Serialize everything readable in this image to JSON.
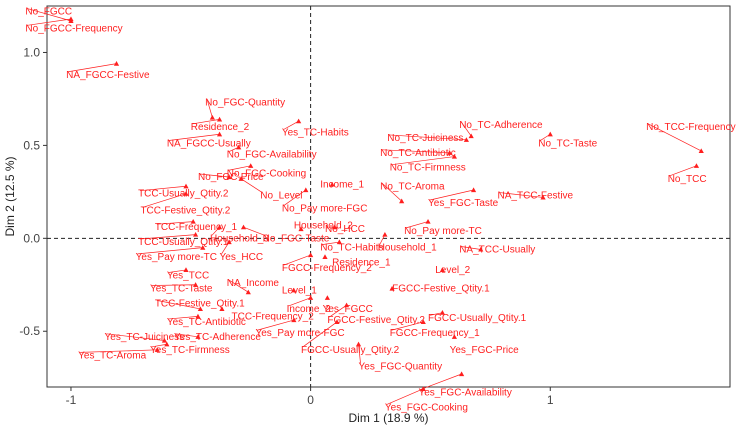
{
  "chart_data": {
    "type": "scatter",
    "xlabel": "Dim 1 (18.9 %)",
    "ylabel": "Dim 2 (12.5 %)",
    "xlim": [
      -1.1,
      1.75
    ],
    "ylim": [
      -0.8,
      1.25
    ],
    "x_ticks": [
      -1,
      0,
      1
    ],
    "x_tick_labels": [
      "-1",
      "0",
      "1"
    ],
    "y_ticks": [
      -0.5,
      0.0,
      0.5,
      1.0
    ],
    "y_tick_labels": [
      "-0.5",
      "0.0",
      "0.5",
      "1.0"
    ],
    "reference_lines": {
      "x": 0,
      "y": 0,
      "style": "dashed"
    },
    "grid": false,
    "point_color": "#ff1f1f",
    "marker": "triangle",
    "points": [
      {
        "label": "No_FGCC",
        "x": -1.0,
        "y": 1.17,
        "lx": -1.19,
        "ly": 1.22
      },
      {
        "label": "No_FGCC-Frequency",
        "x": -1.0,
        "y": 1.18,
        "lx": -1.19,
        "ly": 1.13
      },
      {
        "label": "NA_FGCC-Festive",
        "x": -0.81,
        "y": 0.94,
        "lx": -1.02,
        "ly": 0.88
      },
      {
        "label": "No_FGC-Quantity",
        "x": -0.41,
        "y": 0.65,
        "lx": -0.44,
        "ly": 0.73
      },
      {
        "label": "Residence_2",
        "x": -0.38,
        "y": 0.64,
        "lx": -0.5,
        "ly": 0.6
      },
      {
        "label": "Yes_TC-Habits",
        "x": -0.05,
        "y": 0.63,
        "lx": -0.12,
        "ly": 0.57
      },
      {
        "label": "NA_FGCC-Usually",
        "x": -0.38,
        "y": 0.56,
        "lx": -0.6,
        "ly": 0.51
      },
      {
        "label": "No_FGC-Availability",
        "x": -0.3,
        "y": 0.49,
        "lx": -0.35,
        "ly": 0.45
      },
      {
        "label": "No_FGC-Cooking",
        "x": -0.25,
        "y": 0.39,
        "lx": -0.35,
        "ly": 0.35
      },
      {
        "label": "No_FGC-Price",
        "x": -0.34,
        "y": 0.33,
        "lx": -0.47,
        "ly": 0.33
      },
      {
        "label": "No_Level",
        "x": -0.29,
        "y": 0.32,
        "lx": -0.21,
        "ly": 0.23
      },
      {
        "label": "TCC-Usually_Qtity.2",
        "x": -0.52,
        "y": 0.28,
        "lx": -0.72,
        "ly": 0.24
      },
      {
        "label": "TCC-Festive_Qtity.2",
        "x": -0.52,
        "y": 0.24,
        "lx": -0.71,
        "ly": 0.15
      },
      {
        "label": "TCC-Frequency_1",
        "x": -0.49,
        "y": 0.09,
        "lx": -0.65,
        "ly": 0.06
      },
      {
        "label": "TCC-Usually_Qtity.1",
        "x": -0.48,
        "y": 0.02,
        "lx": -0.72,
        "ly": -0.02
      },
      {
        "label": "Yes_Pay more-TC",
        "x": -0.45,
        "y": -0.05,
        "lx": -0.73,
        "ly": -0.1
      },
      {
        "label": "Household_3",
        "x": -0.38,
        "y": 0.06,
        "lx": -0.42,
        "ly": 0.0
      },
      {
        "label": "No_FGC-Taste",
        "x": -0.28,
        "y": 0.06,
        "lx": -0.2,
        "ly": 0.0
      },
      {
        "label": "Yes_HCC",
        "x": -0.34,
        "y": -0.02,
        "lx": -0.38,
        "ly": -0.1
      },
      {
        "label": "Household_2",
        "x": -0.04,
        "y": 0.05,
        "lx": -0.07,
        "ly": 0.07
      },
      {
        "label": "Yes_TCC",
        "x": -0.52,
        "y": -0.17,
        "lx": -0.6,
        "ly": -0.2
      },
      {
        "label": "Yes_TC-Taste",
        "x": -0.48,
        "y": -0.25,
        "lx": -0.67,
        "ly": -0.27
      },
      {
        "label": "TCC-Festive_Qtity.1",
        "x": -0.46,
        "y": -0.38,
        "lx": -0.65,
        "ly": -0.35
      },
      {
        "label": "Yes_TC-Antibiotic",
        "x": -0.47,
        "y": -0.42,
        "lx": -0.6,
        "ly": -0.45
      },
      {
        "label": "TCC-Frequency_2",
        "x": -0.37,
        "y": -0.38,
        "lx": -0.33,
        "ly": -0.42
      },
      {
        "label": "NA_Income",
        "x": -0.26,
        "y": -0.29,
        "lx": -0.35,
        "ly": -0.24
      },
      {
        "label": "Level_1",
        "x": -0.07,
        "y": -0.28,
        "lx": -0.12,
        "ly": -0.28
      },
      {
        "label": "Yes_TC-Adherence",
        "x": -0.47,
        "y": -0.53,
        "lx": -0.57,
        "ly": -0.53
      },
      {
        "label": "Yes_TC-Juiciness",
        "x": -0.61,
        "y": -0.55,
        "lx": -0.86,
        "ly": -0.53
      },
      {
        "label": "Yes_TC-Firmness",
        "x": -0.6,
        "y": -0.57,
        "lx": -0.67,
        "ly": -0.6
      },
      {
        "label": "Yes_TC-Aroma",
        "x": -0.64,
        "y": -0.6,
        "lx": -0.97,
        "ly": -0.63
      },
      {
        "label": "Yes_Pay more-FGC",
        "x": -0.07,
        "y": -0.44,
        "lx": -0.23,
        "ly": -0.51
      },
      {
        "label": "Income_1",
        "x": 0.09,
        "y": 0.29,
        "lx": 0.04,
        "ly": 0.29
      },
      {
        "label": "No_Pay more-FGC",
        "x": -0.02,
        "y": 0.26,
        "lx": -0.12,
        "ly": 0.16
      },
      {
        "label": "No_HCC",
        "x": 0.1,
        "y": 0.06,
        "lx": 0.06,
        "ly": 0.05
      },
      {
        "label": "No_TC-Habits",
        "x": 0.12,
        "y": -0.02,
        "lx": 0.04,
        "ly": -0.05
      },
      {
        "label": "FGCC-Frequency_2",
        "x": 0.0,
        "y": -0.09,
        "lx": -0.12,
        "ly": -0.16
      },
      {
        "label": "Residence_1",
        "x": 0.06,
        "y": -0.1,
        "lx": 0.09,
        "ly": -0.13
      },
      {
        "label": "Income_2",
        "x": 0.0,
        "y": -0.32,
        "lx": -0.1,
        "ly": -0.38
      },
      {
        "label": "Yes_FGCC",
        "x": 0.07,
        "y": -0.32,
        "lx": 0.05,
        "ly": -0.38
      },
      {
        "label": "FGCC-Festive_Qtity.2",
        "x": 0.15,
        "y": -0.36,
        "lx": 0.07,
        "ly": -0.44
      },
      {
        "label": "FGCC-Usually_Qtity.2",
        "x": 0.11,
        "y": -0.45,
        "lx": -0.04,
        "ly": -0.6
      },
      {
        "label": "Yes_FGC-Quantity",
        "x": 0.2,
        "y": -0.57,
        "lx": 0.2,
        "ly": -0.69
      },
      {
        "label": "No_TC-Adherence",
        "x": 0.67,
        "y": 0.55,
        "lx": 0.62,
        "ly": 0.61
      },
      {
        "label": "No_TC-Juiciness",
        "x": 0.65,
        "y": 0.53,
        "lx": 0.32,
        "ly": 0.54
      },
      {
        "label": "No_TC-Antibiotic",
        "x": 0.58,
        "y": 0.46,
        "lx": 0.29,
        "ly": 0.46
      },
      {
        "label": "No_TC-Firmness",
        "x": 0.6,
        "y": 0.44,
        "lx": 0.33,
        "ly": 0.38
      },
      {
        "label": "No_TC-Aroma",
        "x": 0.38,
        "y": 0.2,
        "lx": 0.29,
        "ly": 0.28
      },
      {
        "label": "Yes_FGC-Taste",
        "x": 0.68,
        "y": 0.26,
        "lx": 0.49,
        "ly": 0.19
      },
      {
        "label": "NA_TCC-Festive",
        "x": 0.97,
        "y": 0.22,
        "lx": 0.78,
        "ly": 0.23
      },
      {
        "label": "No_Pay more-TC",
        "x": 0.49,
        "y": 0.09,
        "lx": 0.39,
        "ly": 0.04
      },
      {
        "label": "Household_1",
        "x": 0.31,
        "y": 0.02,
        "lx": 0.28,
        "ly": -0.05
      },
      {
        "label": "NA_TCC-Usually",
        "x": 0.71,
        "y": -0.06,
        "lx": 0.62,
        "ly": -0.06
      },
      {
        "label": "Level_2",
        "x": 0.55,
        "y": -0.17,
        "lx": 0.52,
        "ly": -0.17
      },
      {
        "label": "FGCC-Festive_Qtity.1",
        "x": 0.34,
        "y": -0.27,
        "lx": 0.34,
        "ly": -0.27
      },
      {
        "label": "FGCC-Usually_Qtity.1",
        "x": 0.55,
        "y": -0.4,
        "lx": 0.49,
        "ly": -0.43
      },
      {
        "label": "FGCC-Frequency_1",
        "x": 0.47,
        "y": -0.45,
        "lx": 0.33,
        "ly": -0.51
      },
      {
        "label": "Yes_FGC-Price",
        "x": 0.6,
        "y": -0.53,
        "lx": 0.58,
        "ly": -0.6
      },
      {
        "label": "Yes_FGC-Availability",
        "x": 0.63,
        "y": -0.73,
        "lx": 0.45,
        "ly": -0.83
      },
      {
        "label": "Yes_FGC-Cooking",
        "x": 0.47,
        "y": -0.81,
        "lx": 0.31,
        "ly": -0.91
      },
      {
        "label": "No_TC-Taste",
        "x": 1.0,
        "y": 0.56,
        "lx": 0.95,
        "ly": 0.51
      },
      {
        "label": "No_TCC-Frequency",
        "x": 1.63,
        "y": 0.47,
        "lx": 1.4,
        "ly": 0.6
      },
      {
        "label": "No_TCC",
        "x": 1.61,
        "y": 0.39,
        "lx": 1.49,
        "ly": 0.32
      }
    ]
  }
}
